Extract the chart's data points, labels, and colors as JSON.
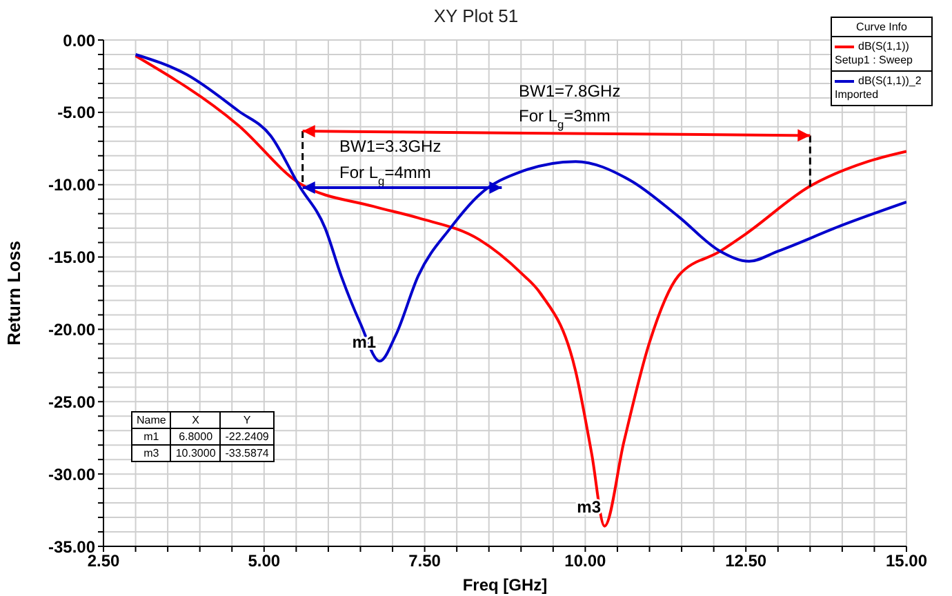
{
  "chart_data": {
    "type": "line",
    "title": "XY Plot 51",
    "xlabel": "Freq [GHz]",
    "ylabel": "Return Loss",
    "legend_title": "Curve Info",
    "legend": "top right",
    "grid": true,
    "marker": "none",
    "line_style": "solid",
    "xlim": [
      2.5,
      15
    ],
    "ylim": [
      -35,
      0
    ],
    "xticks": [
      {
        "value": 2.5,
        "label": "2.50"
      },
      {
        "value": 3,
        "label": null
      },
      {
        "value": 3.5,
        "label": null
      },
      {
        "value": 4,
        "label": null
      },
      {
        "value": 4.5,
        "label": null
      },
      {
        "value": 5,
        "label": "5.00"
      },
      {
        "value": 5.5,
        "label": null
      },
      {
        "value": 6,
        "label": null
      },
      {
        "value": 6.5,
        "label": null
      },
      {
        "value": 7,
        "label": null
      },
      {
        "value": 7.5,
        "label": "7.50"
      },
      {
        "value": 8,
        "label": null
      },
      {
        "value": 8.5,
        "label": null
      },
      {
        "value": 9,
        "label": null
      },
      {
        "value": 9.5,
        "label": null
      },
      {
        "value": 10,
        "label": "10.00"
      },
      {
        "value": 10.5,
        "label": null
      },
      {
        "value": 11,
        "label": null
      },
      {
        "value": 11.5,
        "label": null
      },
      {
        "value": 12,
        "label": null
      },
      {
        "value": 12.5,
        "label": "12.50"
      },
      {
        "value": 13,
        "label": null
      },
      {
        "value": 13.5,
        "label": null
      },
      {
        "value": 14,
        "label": null
      },
      {
        "value": 14.5,
        "label": null
      },
      {
        "value": 15,
        "label": "15.00"
      }
    ],
    "yticks": [
      {
        "value": -35,
        "label": "-35.00"
      },
      {
        "value": -34,
        "label": null
      },
      {
        "value": -33,
        "label": null
      },
      {
        "value": -32,
        "label": null
      },
      {
        "value": -31,
        "label": null
      },
      {
        "value": -30,
        "label": "-30.00"
      },
      {
        "value": -29,
        "label": null
      },
      {
        "value": -28,
        "label": null
      },
      {
        "value": -27,
        "label": null
      },
      {
        "value": -26,
        "label": null
      },
      {
        "value": -25,
        "label": "-25.00"
      },
      {
        "value": -24,
        "label": null
      },
      {
        "value": -23,
        "label": null
      },
      {
        "value": -22,
        "label": null
      },
      {
        "value": -21,
        "label": null
      },
      {
        "value": -20,
        "label": "-20.00"
      },
      {
        "value": -19,
        "label": null
      },
      {
        "value": -18,
        "label": null
      },
      {
        "value": -17,
        "label": null
      },
      {
        "value": -16,
        "label": null
      },
      {
        "value": -15,
        "label": "-15.00"
      },
      {
        "value": -14,
        "label": null
      },
      {
        "value": -13,
        "label": null
      },
      {
        "value": -12,
        "label": null
      },
      {
        "value": -11,
        "label": null
      },
      {
        "value": -10,
        "label": "-10.00"
      },
      {
        "value": -9,
        "label": null
      },
      {
        "value": -8,
        "label": null
      },
      {
        "value": -7,
        "label": null
      },
      {
        "value": -6,
        "label": null
      },
      {
        "value": -5,
        "label": "-5.00"
      },
      {
        "value": -4,
        "label": null
      },
      {
        "value": -3,
        "label": null
      },
      {
        "value": -2,
        "label": null
      },
      {
        "value": -1,
        "label": null
      },
      {
        "value": 0,
        "label": "0.00"
      }
    ],
    "series": [
      {
        "name": "dB(S(1,1)) Setup1 : Sweep",
        "color": "#ff0000",
        "x": [
          3.0,
          4.6,
          5.55,
          6.7,
          7.4,
          8.35,
          9.0,
          9.3,
          9.85,
          10.1,
          10.3,
          10.6,
          11.0,
          11.45,
          12.1,
          12.5,
          13.5,
          14.4,
          15.0
        ],
        "values": [
          -1.1,
          -5.9,
          -9.9,
          -11.5,
          -12.3,
          -13.8,
          -16.1,
          -17.5,
          -22.9,
          -28.6,
          -33.6,
          -27.8,
          -20.9,
          -16.3,
          -14.6,
          -13.4,
          -10.1,
          -8.4,
          -7.7
        ]
      },
      {
        "name": "dB(S(1,1))_2 Imported",
        "color": "#0000cc",
        "x": [
          3.0,
          3.8,
          4.6,
          5.1,
          5.55,
          5.95,
          6.2,
          6.5,
          6.8,
          7.05,
          7.4,
          7.9,
          8.35,
          9.0,
          9.85,
          10.7,
          11.45,
          12.1,
          12.55,
          13.0,
          14.0,
          15.0
        ],
        "values": [
          -1.0,
          -2.4,
          -4.9,
          -6.6,
          -10.1,
          -13.0,
          -16.3,
          -19.6,
          -22.2,
          -20.4,
          -16.3,
          -13.0,
          -10.7,
          -9.1,
          -8.4,
          -9.7,
          -12.2,
          -14.6,
          -15.3,
          -14.6,
          -12.8,
          -11.2
        ]
      }
    ],
    "annotations": [
      "BW1=7.8GHz",
      "For L$_{g}$=3mm",
      "BW1=3.3GHz",
      "For L$_{g}$=4mm",
      {
        "text": "m1",
        "x": 6.8,
        "y": -22.2
      },
      {
        "text": "m3",
        "x": 10.3,
        "y": -33.6
      },
      "Name",
      "X",
      "Y",
      "m1",
      "6.8000",
      "-22.2409",
      "m3",
      "10.3000",
      "-33.5874"
    ]
  }
}
